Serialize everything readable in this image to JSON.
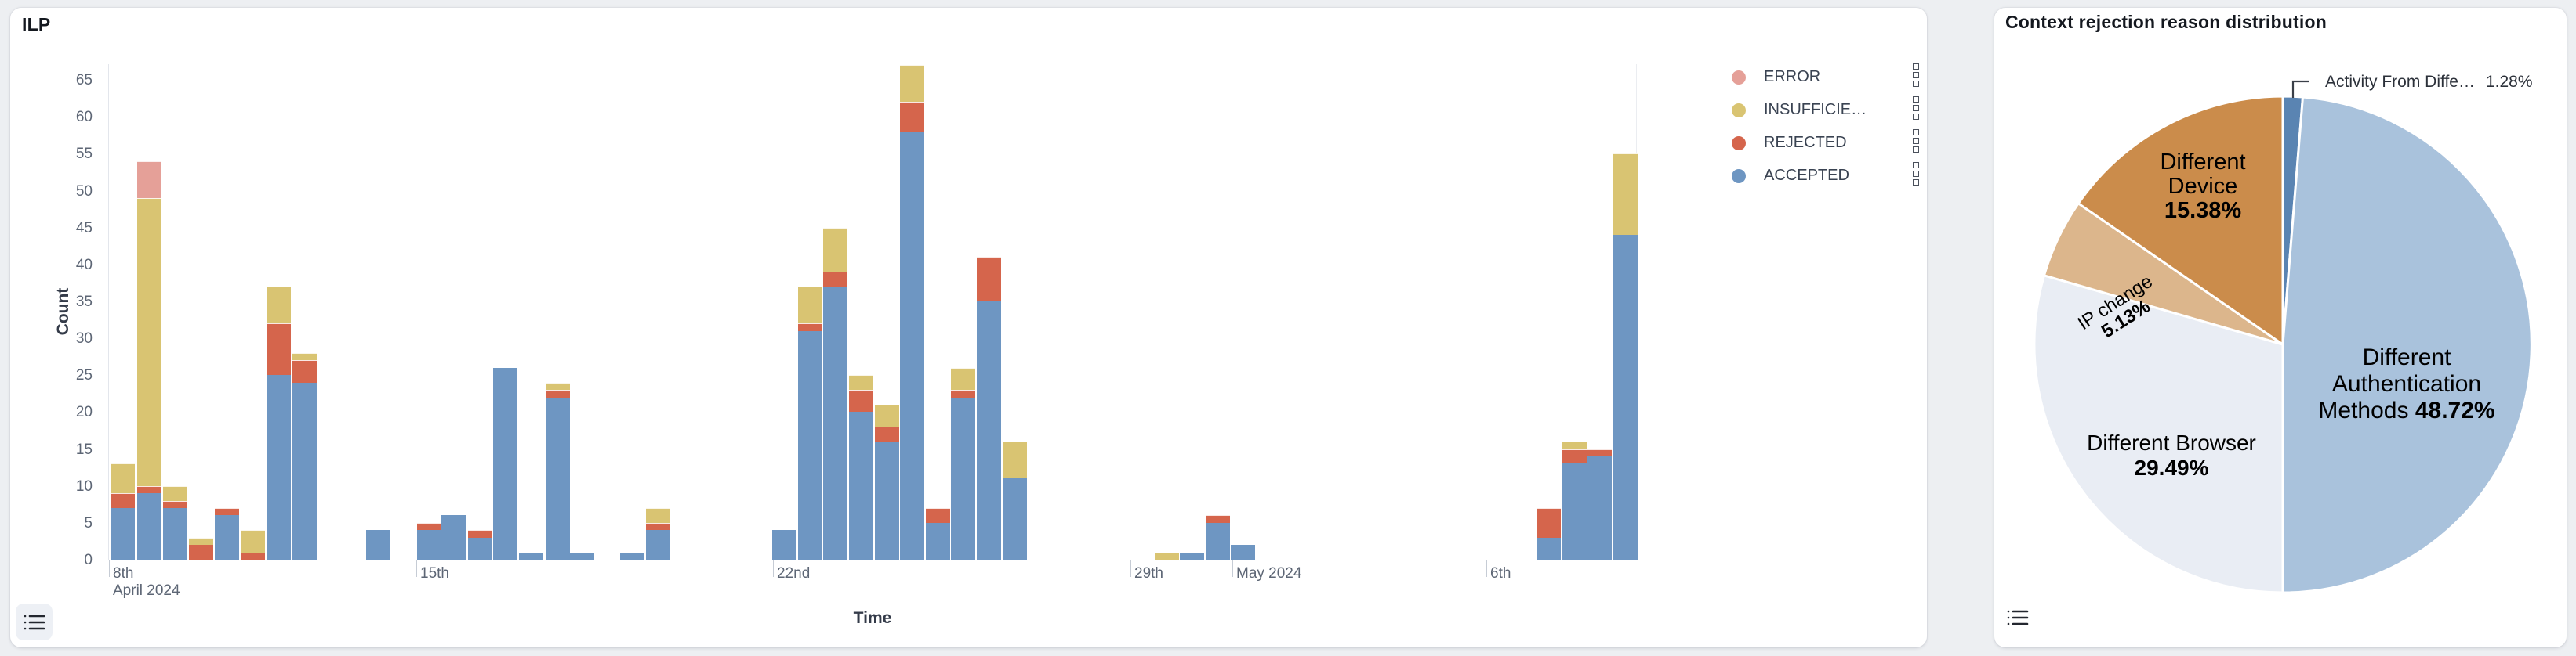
{
  "left_panel": {
    "title": "ILP",
    "x_axis_title": "Time",
    "y_axis_title": "Count",
    "legend": [
      {
        "label": "ERROR",
        "key": "error",
        "color": "#e5a098"
      },
      {
        "label": "INSUFFICIE…",
        "key": "insufficient",
        "color": "#d9c472"
      },
      {
        "label": "REJECTED",
        "key": "rejected",
        "color": "#d5654c"
      },
      {
        "label": "ACCEPTED",
        "key": "accepted",
        "color": "#6e96c2"
      }
    ],
    "chart_data": {
      "type": "bar",
      "stacked": true,
      "ylabel": "Count",
      "xlabel": "Time",
      "ylim": [
        0,
        65
      ],
      "y_ticks": [
        0,
        5,
        10,
        15,
        20,
        25,
        30,
        35,
        40,
        45,
        50,
        55,
        60,
        65
      ],
      "x_ticks": [
        {
          "x": 1,
          "lines": [
            "8th",
            "April 2024"
          ]
        },
        {
          "x": 393,
          "lines": [
            "15th"
          ]
        },
        {
          "x": 848,
          "lines": [
            "22nd"
          ]
        },
        {
          "x": 1304,
          "lines": [
            "29th"
          ]
        },
        {
          "x": 1434,
          "lines": [
            "May 2024"
          ]
        },
        {
          "x": 1758,
          "lines": [
            "6th"
          ]
        }
      ],
      "stack_order_bottom_to_top": [
        "accepted",
        "rejected",
        "insufficient",
        "error"
      ],
      "bars": [
        {
          "x": 3,
          "accepted": 7,
          "rejected": 2,
          "insufficient": 4,
          "error": 0
        },
        {
          "x": 37,
          "accepted": 9,
          "rejected": 1,
          "insufficient": 39,
          "error": 5
        },
        {
          "x": 70,
          "accepted": 7,
          "rejected": 1,
          "insufficient": 2,
          "error": 0
        },
        {
          "x": 103,
          "accepted": 0,
          "rejected": 2,
          "insufficient": 1,
          "error": 0
        },
        {
          "x": 136,
          "accepted": 6,
          "rejected": 1,
          "insufficient": 0,
          "error": 0
        },
        {
          "x": 169,
          "accepted": 0,
          "rejected": 1,
          "insufficient": 3,
          "error": 0
        },
        {
          "x": 202,
          "accepted": 25,
          "rejected": 7,
          "insufficient": 5,
          "error": 0
        },
        {
          "x": 235,
          "accepted": 24,
          "rejected": 3,
          "insufficient": 1,
          "error": 0
        },
        {
          "x": 329,
          "accepted": 4,
          "rejected": 0,
          "insufficient": 0,
          "error": 0
        },
        {
          "x": 394,
          "accepted": 4,
          "rejected": 1,
          "insufficient": 0,
          "error": 0
        },
        {
          "x": 425,
          "accepted": 6,
          "rejected": 0,
          "insufficient": 0,
          "error": 0
        },
        {
          "x": 459,
          "accepted": 3,
          "rejected": 1,
          "insufficient": 0,
          "error": 0
        },
        {
          "x": 491,
          "accepted": 26,
          "rejected": 0,
          "insufficient": 0,
          "error": 0
        },
        {
          "x": 524,
          "accepted": 1,
          "rejected": 0,
          "insufficient": 0,
          "error": 0
        },
        {
          "x": 558,
          "accepted": 22,
          "rejected": 1,
          "insufficient": 1,
          "error": 0
        },
        {
          "x": 589,
          "accepted": 1,
          "rejected": 0,
          "insufficient": 0,
          "error": 0
        },
        {
          "x": 653,
          "accepted": 1,
          "rejected": 0,
          "insufficient": 0,
          "error": 0
        },
        {
          "x": 686,
          "accepted": 4,
          "rejected": 1,
          "insufficient": 2,
          "error": 0
        },
        {
          "x": 847,
          "accepted": 4,
          "rejected": 0,
          "insufficient": 0,
          "error": 0
        },
        {
          "x": 880,
          "accepted": 31,
          "rejected": 1,
          "insufficient": 5,
          "error": 0
        },
        {
          "x": 912,
          "accepted": 37,
          "rejected": 2,
          "insufficient": 6,
          "error": 0
        },
        {
          "x": 945,
          "accepted": 20,
          "rejected": 3,
          "insufficient": 2,
          "error": 0
        },
        {
          "x": 978,
          "accepted": 16,
          "rejected": 2,
          "insufficient": 3,
          "error": 0
        },
        {
          "x": 1010,
          "accepted": 58,
          "rejected": 4,
          "insufficient": 5,
          "error": 0
        },
        {
          "x": 1043,
          "accepted": 5,
          "rejected": 2,
          "insufficient": 0,
          "error": 0
        },
        {
          "x": 1075,
          "accepted": 22,
          "rejected": 1,
          "insufficient": 3,
          "error": 0
        },
        {
          "x": 1108,
          "accepted": 35,
          "rejected": 6,
          "insufficient": 0,
          "error": 0
        },
        {
          "x": 1141,
          "accepted": 11,
          "rejected": 0,
          "insufficient": 5,
          "error": 0
        },
        {
          "x": 1335,
          "accepted": 0,
          "rejected": 0,
          "insufficient": 1,
          "error": 0
        },
        {
          "x": 1367,
          "accepted": 1,
          "rejected": 0,
          "insufficient": 0,
          "error": 0
        },
        {
          "x": 1400,
          "accepted": 5,
          "rejected": 1,
          "insufficient": 0,
          "error": 0
        },
        {
          "x": 1432,
          "accepted": 2,
          "rejected": 0,
          "insufficient": 0,
          "error": 0
        },
        {
          "x": 1822,
          "accepted": 3,
          "rejected": 4,
          "insufficient": 0,
          "error": 0
        },
        {
          "x": 1855,
          "accepted": 13,
          "rejected": 2,
          "insufficient": 1,
          "error": 0
        },
        {
          "x": 1887,
          "accepted": 14,
          "rejected": 1,
          "insufficient": 0,
          "error": 0
        },
        {
          "x": 1920,
          "accepted": 44,
          "rejected": 0,
          "insufficient": 11,
          "error": 0
        }
      ]
    }
  },
  "right_panel": {
    "title": "Context rejection reason distribution",
    "chart_data": {
      "type": "pie",
      "start_angle_deg_from_top_clockwise": 0,
      "slices": [
        {
          "name": "Activity From Diffe…",
          "pct": 1.28,
          "pct_label": "1.28%",
          "color": "#5a84b2",
          "label_lines": [
            "Activity From Diffe…"
          ]
        },
        {
          "name": "Different Authentication Methods",
          "pct": 48.72,
          "pct_label": "48.72%",
          "color": "#a9c2dc",
          "label_lines": [
            "Different",
            "Authentication",
            "Methods"
          ]
        },
        {
          "name": "Different Browser",
          "pct": 29.49,
          "pct_label": "29.49%",
          "color": "#e9edf4",
          "label_lines": [
            "Different Browser"
          ]
        },
        {
          "name": "IP change",
          "pct": 5.13,
          "pct_label": "5.13%",
          "color": "#dcb68c",
          "label_lines": [
            "IP change"
          ]
        },
        {
          "name": "Different Device",
          "pct": 15.38,
          "pct_label": "15.38%",
          "color": "#cb8c4b",
          "label_lines": [
            "Different",
            "Device"
          ]
        }
      ]
    }
  }
}
